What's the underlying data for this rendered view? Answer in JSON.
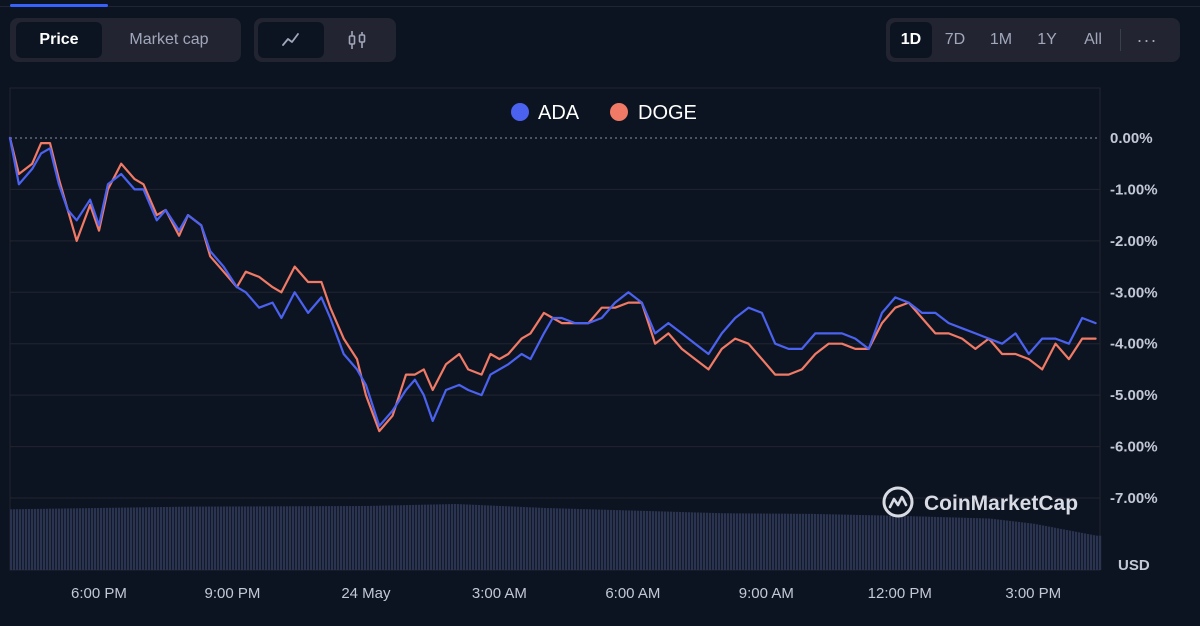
{
  "controls": {
    "type_tabs": [
      {
        "label": "Price",
        "active": true
      },
      {
        "label": "Market cap",
        "active": false
      }
    ],
    "chart_tabs": [
      {
        "icon": "line-chart-icon",
        "active": true
      },
      {
        "icon": "candlestick-icon",
        "active": false
      }
    ],
    "range_tabs": [
      {
        "label": "1D",
        "active": true
      },
      {
        "label": "7D",
        "active": false
      },
      {
        "label": "1M",
        "active": false
      },
      {
        "label": "1Y",
        "active": false
      },
      {
        "label": "All",
        "active": false
      }
    ],
    "more_label": "···"
  },
  "watermark": "CoinMarketCap",
  "colors": {
    "background": "#0d1421",
    "grid": "#222531",
    "ADA": "#4b62f0",
    "DOGE": "#f07a65",
    "volume": "#2a3450"
  },
  "chart_data": {
    "type": "line",
    "legend_position": "top-center",
    "grid": true,
    "currency_label": "USD",
    "x_ticks": [
      "6:00 PM",
      "9:00 PM",
      "24 May",
      "3:00 AM",
      "6:00 AM",
      "9:00 AM",
      "12:00 PM",
      "3:00 PM"
    ],
    "x_tick_hours": [
      18,
      21,
      24,
      27,
      30,
      33,
      36,
      39
    ],
    "xlim_hours": [
      16.0,
      40.5
    ],
    "ylim": [
      -8.0,
      0.0
    ],
    "y_ticks": [
      "0.00%",
      "-1.00%",
      "-2.00%",
      "-3.00%",
      "-4.00%",
      "-5.00%",
      "-6.00%",
      "-7.00%"
    ],
    "y_tick_values": [
      0,
      -1,
      -2,
      -3,
      -4,
      -5,
      -6,
      -7
    ],
    "reference_line": 0.0,
    "series": [
      {
        "name": "ADA",
        "x_hours": [
          16.0,
          16.2,
          16.5,
          16.7,
          16.9,
          17.1,
          17.3,
          17.5,
          17.8,
          18.0,
          18.2,
          18.5,
          18.8,
          19.0,
          19.3,
          19.5,
          19.8,
          20.0,
          20.3,
          20.5,
          20.8,
          21.1,
          21.3,
          21.6,
          21.9,
          22.1,
          22.4,
          22.7,
          23.0,
          23.2,
          23.5,
          23.8,
          24.0,
          24.3,
          24.6,
          24.9,
          25.1,
          25.3,
          25.5,
          25.8,
          26.1,
          26.3,
          26.6,
          26.8,
          27.0,
          27.2,
          27.5,
          27.7,
          28.0,
          28.2,
          28.4,
          28.7,
          29.0,
          29.3,
          29.6,
          29.9,
          30.2,
          30.5,
          30.8,
          31.1,
          31.4,
          31.7,
          32.0,
          32.3,
          32.6,
          32.9,
          33.2,
          33.5,
          33.8,
          34.1,
          34.4,
          34.7,
          35.0,
          35.3,
          35.6,
          35.9,
          36.2,
          36.5,
          36.8,
          37.1,
          37.4,
          37.7,
          38.0,
          38.3,
          38.6,
          38.9,
          39.2,
          39.5,
          39.8,
          40.1,
          40.4
        ],
        "values": [
          0.0,
          -0.9,
          -0.6,
          -0.3,
          -0.2,
          -0.9,
          -1.4,
          -1.6,
          -1.2,
          -1.7,
          -0.9,
          -0.7,
          -1.0,
          -1.0,
          -1.6,
          -1.4,
          -1.8,
          -1.5,
          -1.7,
          -2.2,
          -2.5,
          -2.9,
          -3.0,
          -3.3,
          -3.2,
          -3.5,
          -3.0,
          -3.4,
          -3.1,
          -3.5,
          -4.2,
          -4.5,
          -4.8,
          -5.6,
          -5.3,
          -4.9,
          -4.7,
          -5.0,
          -5.5,
          -4.9,
          -4.8,
          -4.9,
          -5.0,
          -4.6,
          -4.5,
          -4.4,
          -4.2,
          -4.3,
          -3.8,
          -3.5,
          -3.5,
          -3.6,
          -3.6,
          -3.5,
          -3.2,
          -3.0,
          -3.2,
          -3.8,
          -3.6,
          -3.8,
          -4.0,
          -4.2,
          -3.8,
          -3.5,
          -3.3,
          -3.4,
          -4.0,
          -4.1,
          -4.1,
          -3.8,
          -3.8,
          -3.8,
          -3.9,
          -4.1,
          -3.4,
          -3.1,
          -3.2,
          -3.4,
          -3.4,
          -3.6,
          -3.7,
          -3.8,
          -3.9,
          -4.0,
          -3.8,
          -4.2,
          -3.9,
          -3.9,
          -4.0,
          -3.5,
          -3.6
        ]
      },
      {
        "name": "DOGE",
        "x_hours": [
          16.0,
          16.2,
          16.5,
          16.7,
          16.9,
          17.1,
          17.3,
          17.5,
          17.8,
          18.0,
          18.2,
          18.5,
          18.8,
          19.0,
          19.3,
          19.5,
          19.8,
          20.0,
          20.3,
          20.5,
          20.8,
          21.1,
          21.3,
          21.6,
          21.9,
          22.1,
          22.4,
          22.7,
          23.0,
          23.2,
          23.5,
          23.8,
          24.0,
          24.3,
          24.6,
          24.9,
          25.1,
          25.3,
          25.5,
          25.8,
          26.1,
          26.3,
          26.6,
          26.8,
          27.0,
          27.2,
          27.5,
          27.7,
          28.0,
          28.2,
          28.4,
          28.7,
          29.0,
          29.3,
          29.6,
          29.9,
          30.2,
          30.5,
          30.8,
          31.1,
          31.4,
          31.7,
          32.0,
          32.3,
          32.6,
          32.9,
          33.2,
          33.5,
          33.8,
          34.1,
          34.4,
          34.7,
          35.0,
          35.3,
          35.6,
          35.9,
          36.2,
          36.5,
          36.8,
          37.1,
          37.4,
          37.7,
          38.0,
          38.3,
          38.6,
          38.9,
          39.2,
          39.5,
          39.8,
          40.1,
          40.4
        ],
        "values": [
          0.0,
          -0.7,
          -0.5,
          -0.1,
          -0.1,
          -0.8,
          -1.4,
          -2.0,
          -1.3,
          -1.8,
          -1.0,
          -0.5,
          -0.8,
          -0.9,
          -1.5,
          -1.4,
          -1.9,
          -1.5,
          -1.7,
          -2.3,
          -2.6,
          -2.9,
          -2.6,
          -2.7,
          -2.9,
          -3.0,
          -2.5,
          -2.8,
          -2.8,
          -3.3,
          -3.9,
          -4.3,
          -5.0,
          -5.7,
          -5.4,
          -4.6,
          -4.6,
          -4.5,
          -4.9,
          -4.4,
          -4.2,
          -4.5,
          -4.6,
          -4.2,
          -4.3,
          -4.2,
          -3.9,
          -3.8,
          -3.4,
          -3.5,
          -3.6,
          -3.6,
          -3.6,
          -3.3,
          -3.3,
          -3.2,
          -3.2,
          -4.0,
          -3.8,
          -4.1,
          -4.3,
          -4.5,
          -4.1,
          -3.9,
          -4.0,
          -4.3,
          -4.6,
          -4.6,
          -4.5,
          -4.2,
          -4.0,
          -4.0,
          -4.1,
          -4.1,
          -3.6,
          -3.3,
          -3.2,
          -3.5,
          -3.8,
          -3.8,
          -3.9,
          -4.1,
          -3.9,
          -4.2,
          -4.2,
          -4.3,
          -4.5,
          -4.0,
          -4.3,
          -3.9,
          -3.9
        ]
      }
    ],
    "volume": {
      "note_free": true,
      "x_hours": [
        16.0,
        20.0,
        24.0,
        26.0,
        28.0,
        30.0,
        32.0,
        34.0,
        36.0,
        38.0,
        39.0,
        40.4
      ],
      "relative": [
        0.92,
        0.96,
        0.97,
        1.0,
        0.94,
        0.9,
        0.86,
        0.85,
        0.82,
        0.78,
        0.7,
        0.52
      ]
    }
  }
}
